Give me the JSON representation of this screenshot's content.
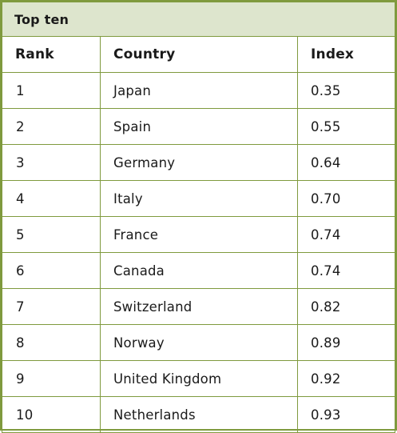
{
  "table": {
    "title": "Top ten",
    "headers": {
      "rank": "Rank",
      "country": "Country",
      "index": "Index"
    },
    "rows": [
      {
        "rank": "1",
        "country": "Japan",
        "index": "0.35"
      },
      {
        "rank": "2",
        "country": "Spain",
        "index": "0.55"
      },
      {
        "rank": "3",
        "country": "Germany",
        "index": "0.64"
      },
      {
        "rank": "4",
        "country": "Italy",
        "index": "0.70"
      },
      {
        "rank": "5",
        "country": "France",
        "index": "0.74"
      },
      {
        "rank": "6",
        "country": "Canada",
        "index": "0.74"
      },
      {
        "rank": "7",
        "country": "Switzerland",
        "index": "0.82"
      },
      {
        "rank": "8",
        "country": "Norway",
        "index": "0.89"
      },
      {
        "rank": "9",
        "country": "United Kingdom",
        "index": "0.92"
      },
      {
        "rank": "10",
        "country": "Netherlands",
        "index": "0.93"
      }
    ]
  },
  "colors": {
    "border": "#7f9a3e",
    "title_background": "#dde5cd"
  }
}
